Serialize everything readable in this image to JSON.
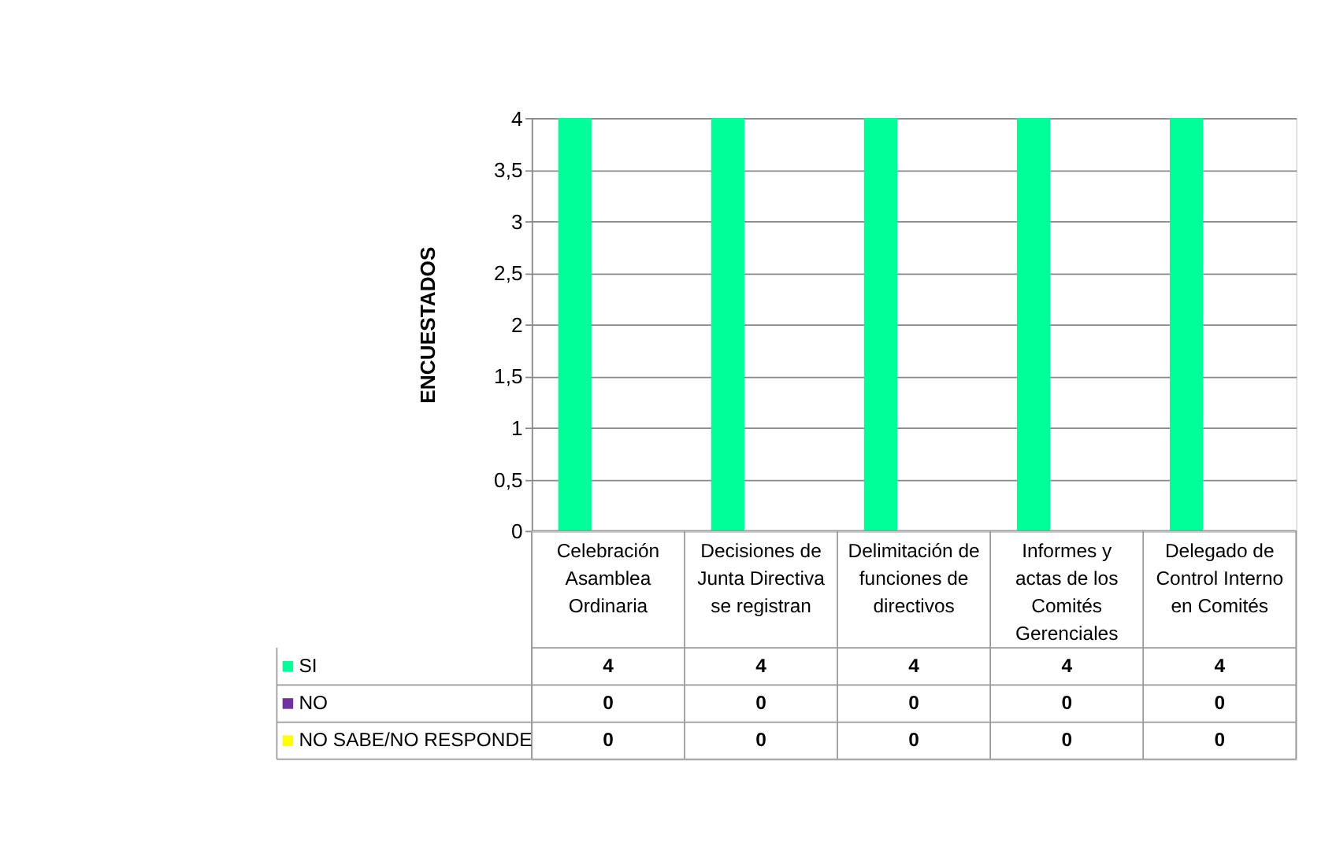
{
  "chart_data": {
    "type": "bar",
    "ylabel": "ENCUESTADOS",
    "categories": [
      "Celebración Asamblea Ordinaria",
      "Decisiones de Junta Directiva se registran",
      "Delimitación de funciones de directivos",
      "Informes y actas de los Comités Gerenciales",
      "Delegado de Control Interno  en Comités"
    ],
    "series": [
      {
        "name": "SI",
        "color": "#00ff99",
        "values": [
          4,
          4,
          4,
          4,
          4
        ]
      },
      {
        "name": "NO",
        "color": "#7030a0",
        "values": [
          0,
          0,
          0,
          0,
          0
        ]
      },
      {
        "name": "NO SABE/NO RESPONDE",
        "color": "#ffff00",
        "values": [
          0,
          0,
          0,
          0,
          0
        ]
      }
    ],
    "ylim": [
      0,
      4
    ],
    "yticks": [
      0,
      {
        "value": 0.5,
        "label": "0,5"
      },
      1,
      {
        "value": 1.5,
        "label": "1,5"
      },
      2,
      {
        "value": 2.5,
        "label": "2,5"
      },
      3,
      {
        "value": 3.5,
        "label": "3,5"
      },
      4
    ],
    "grid": "y",
    "legend": "bottom left",
    "data_labels": true
  }
}
